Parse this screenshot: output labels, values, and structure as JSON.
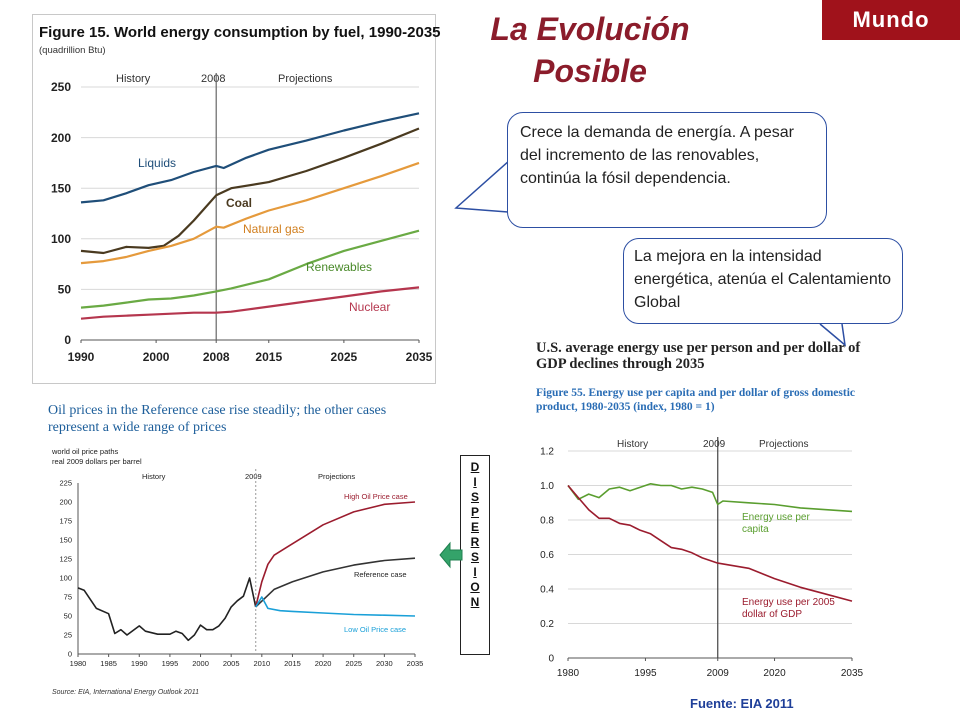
{
  "header": {
    "title_line1": "La Evolución",
    "title_line2": "Posible",
    "badge": "Mundo"
  },
  "callouts": [
    {
      "text": "Crece la demanda de energía. A pesar del incremento de las renovables, continúa la fósil dependencia."
    },
    {
      "text": "La mejora en la intensidad energética, atenúa el Calentamiento Global"
    }
  ],
  "dispersion": {
    "letters": [
      "D",
      "I",
      "S",
      "P",
      "E",
      "R",
      "S",
      "I",
      "O",
      "N"
    ]
  },
  "source": {
    "text": "Fuente: EIA 2011"
  },
  "colors": {
    "title": "#8b1c2b",
    "badge_bg": "#a0121b",
    "callout_border": "#2d4fa3",
    "arrow": "#34a36a"
  },
  "chart_data": [
    {
      "type": "line",
      "title": "Figure 15. World energy consumption by fuel, 1990-2035",
      "subtitle": "(quadrillion Btu)",
      "x_ticks": [
        1990,
        2000,
        2008,
        2015,
        2025,
        2035
      ],
      "y_ticks": [
        0,
        50,
        100,
        150,
        200,
        250
      ],
      "xlim": [
        1990,
        2035
      ],
      "ylim": [
        0,
        250
      ],
      "annotations": [
        "History",
        "2008",
        "Projections"
      ],
      "divider_x": 2008,
      "grid": true,
      "series": [
        {
          "name": "Liquids",
          "color": "#1f4e79",
          "x": [
            1990,
            1993,
            1996,
            1999,
            2002,
            2005,
            2008,
            2009,
            2012,
            2015,
            2020,
            2025,
            2030,
            2035
          ],
          "values": [
            136,
            138,
            145,
            153,
            158,
            166,
            172,
            170,
            180,
            188,
            197,
            207,
            216,
            224
          ]
        },
        {
          "name": "Coal",
          "color": "#4a3a20",
          "x": [
            1990,
            1993,
            1996,
            1999,
            2001,
            2003,
            2005,
            2008,
            2010,
            2015,
            2020,
            2025,
            2030,
            2035
          ],
          "values": [
            88,
            86,
            92,
            91,
            93,
            103,
            118,
            143,
            150,
            156,
            167,
            180,
            194,
            209
          ]
        },
        {
          "name": "Natural gas",
          "color": "#e59a3c",
          "x": [
            1990,
            1993,
            1996,
            1999,
            2002,
            2005,
            2008,
            2009,
            2012,
            2015,
            2020,
            2025,
            2030,
            2035
          ],
          "values": [
            76,
            78,
            82,
            88,
            93,
            100,
            112,
            111,
            120,
            128,
            138,
            150,
            162,
            175
          ]
        },
        {
          "name": "Renewables",
          "color": "#6aaa44",
          "x": [
            1990,
            1993,
            1996,
            1999,
            2002,
            2005,
            2008,
            2010,
            2015,
            2020,
            2025,
            2030,
            2035
          ],
          "values": [
            32,
            34,
            37,
            40,
            41,
            44,
            48,
            51,
            60,
            75,
            88,
            98,
            108
          ]
        },
        {
          "name": "Nuclear",
          "color": "#b5364e",
          "x": [
            1990,
            1993,
            1996,
            1999,
            2002,
            2005,
            2008,
            2010,
            2015,
            2020,
            2025,
            2030,
            2035
          ],
          "values": [
            21,
            23,
            24,
            25,
            26,
            27,
            27,
            28,
            33,
            38,
            43,
            48,
            52
          ]
        }
      ]
    },
    {
      "type": "line",
      "title": "Oil prices in the Reference case rise steadily; the other cases represent a wide range of prices",
      "subtitle_line1": "world oil price paths",
      "subtitle_line2": "real 2009 dollars per barrel",
      "x_ticks": [
        1980,
        1985,
        1990,
        1995,
        2000,
        2005,
        2010,
        2015,
        2020,
        2025,
        2030,
        2035
      ],
      "y_ticks": [
        0,
        25,
        50,
        75,
        100,
        125,
        150,
        175,
        200,
        225
      ],
      "xlim": [
        1980,
        2035
      ],
      "ylim": [
        0,
        225
      ],
      "annotations": [
        "History",
        "2009",
        "Projections"
      ],
      "divider_x": 2009,
      "source_note": "Source: EIA, International Energy Outlook 2011",
      "series": [
        {
          "name": "History",
          "color": "#222222",
          "x": [
            1980,
            1981,
            1983,
            1985,
            1986,
            1987,
            1988,
            1990,
            1991,
            1993,
            1995,
            1996,
            1997,
            1998,
            1999,
            2000,
            2001,
            2002,
            2003,
            2004,
            2005,
            2006,
            2007,
            2008,
            2009
          ],
          "values": [
            87,
            84,
            60,
            53,
            27,
            32,
            25,
            37,
            30,
            26,
            26,
            30,
            27,
            18,
            25,
            38,
            32,
            32,
            37,
            47,
            62,
            70,
            76,
            100,
            62
          ]
        },
        {
          "name": "High Oil Price case",
          "color": "#9b1c2e",
          "x": [
            2009,
            2010,
            2011,
            2012,
            2014,
            2017,
            2020,
            2025,
            2030,
            2035
          ],
          "values": [
            62,
            95,
            118,
            130,
            140,
            155,
            170,
            187,
            197,
            200
          ]
        },
        {
          "name": "Reference case",
          "color": "#333333",
          "x": [
            2009,
            2012,
            2015,
            2020,
            2025,
            2030,
            2035
          ],
          "values": [
            62,
            85,
            95,
            108,
            117,
            123,
            126
          ]
        },
        {
          "name": "Low Oil Price case",
          "color": "#1aa0d8",
          "x": [
            2009,
            2010,
            2011,
            2013,
            2015,
            2020,
            2025,
            2030,
            2035
          ],
          "values": [
            62,
            75,
            60,
            57,
            56,
            54,
            52,
            51,
            50
          ]
        }
      ]
    },
    {
      "type": "line",
      "headline": "U.S. average energy use per person and per dollar of GDP declines through 2035",
      "title": "Figure 55. Energy use per capita and per dollar of gross domestic product, 1980-2035 (index, 1980 = 1)",
      "x_ticks": [
        1980,
        1995,
        2009,
        2020,
        2035
      ],
      "y_ticks": [
        0,
        0.2,
        0.4,
        0.6,
        0.8,
        1.0,
        1.2
      ],
      "xlim": [
        1980,
        2035
      ],
      "ylim": [
        0,
        1.2
      ],
      "annotations": [
        "History",
        "2009",
        "Projections"
      ],
      "divider_x": 2009,
      "grid": true,
      "series": [
        {
          "name": "Energy use per capita",
          "color": "#5a9e2f",
          "x": [
            1980,
            1982,
            1984,
            1986,
            1988,
            1990,
            1992,
            1994,
            1996,
            1998,
            2000,
            2002,
            2004,
            2006,
            2008,
            2009,
            2010,
            2015,
            2020,
            2025,
            2030,
            2035
          ],
          "values": [
            1.0,
            0.92,
            0.95,
            0.93,
            0.98,
            0.99,
            0.97,
            0.99,
            1.01,
            1.0,
            1.0,
            0.98,
            0.99,
            0.98,
            0.96,
            0.89,
            0.91,
            0.9,
            0.89,
            0.87,
            0.86,
            0.85
          ]
        },
        {
          "name": "Energy use per 2005 dollar of GDP",
          "color": "#9b1c2e",
          "x": [
            1980,
            1982,
            1984,
            1986,
            1988,
            1990,
            1992,
            1994,
            1996,
            1998,
            2000,
            2002,
            2004,
            2006,
            2008,
            2009,
            2015,
            2020,
            2025,
            2030,
            2035
          ],
          "values": [
            1.0,
            0.93,
            0.86,
            0.81,
            0.81,
            0.78,
            0.77,
            0.74,
            0.72,
            0.68,
            0.64,
            0.63,
            0.61,
            0.58,
            0.56,
            0.55,
            0.52,
            0.46,
            0.41,
            0.37,
            0.33
          ]
        }
      ]
    }
  ]
}
